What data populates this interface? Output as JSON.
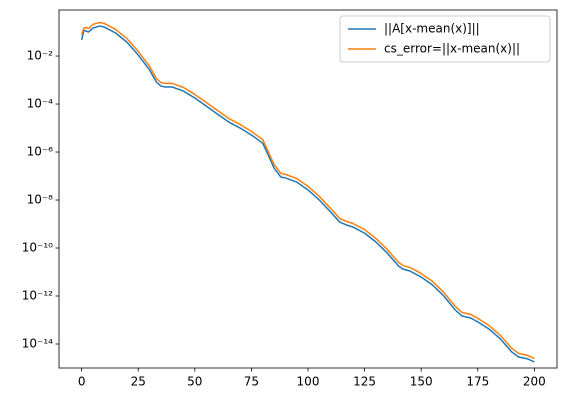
{
  "chart_data": {
    "type": "line",
    "yscale": "log",
    "x": [
      0,
      1,
      2,
      3,
      5,
      8,
      10,
      15,
      20,
      25,
      30,
      33,
      35,
      37,
      40,
      45,
      50,
      55,
      60,
      65,
      70,
      75,
      80,
      82,
      85,
      88,
      90,
      95,
      100,
      105,
      110,
      114,
      117,
      120,
      125,
      130,
      135,
      140,
      142,
      145,
      150,
      155,
      160,
      165,
      168,
      172,
      175,
      180,
      185,
      190,
      193,
      197,
      200
    ],
    "series": [
      {
        "name": "||A[x-mean(x)]||",
        "color": "#1f77b4",
        "values": [
          0.0468,
          0.12,
          0.11,
          0.1,
          0.148,
          0.178,
          0.162,
          0.0912,
          0.038,
          0.011,
          0.00263,
          0.000832,
          0.000562,
          0.000513,
          0.000513,
          0.000347,
          0.000178,
          8.32e-05,
          3.8e-05,
          1.78e-05,
          1e-05,
          5.13e-06,
          2.34e-06,
          9.12e-07,
          2.14e-07,
          9.12e-08,
          8.32e-08,
          5.62e-08,
          2.63e-08,
          1e-08,
          3.16e-09,
          1.2e-09,
          9.12e-10,
          7.41e-10,
          4.17e-10,
          1.78e-10,
          6.17e-11,
          1.78e-11,
          1.32e-11,
          1.1e-11,
          6.17e-12,
          2.88e-12,
          1e-12,
          2.63e-13,
          1.48e-13,
          1.2e-13,
          8.32e-14,
          4.17e-14,
          1.62e-14,
          4.68e-15,
          2.88e-15,
          2.4e-15,
          1.78e-15
        ]
      },
      {
        "name": "cs_error=||x-mean(x)||",
        "color": "#ff7f0e",
        "values": [
          0.076,
          0.148,
          0.155,
          0.141,
          0.209,
          0.251,
          0.228,
          0.129,
          0.0536,
          0.0155,
          0.00371,
          0.00117,
          0.000792,
          0.000723,
          0.000723,
          0.000489,
          0.000251,
          0.000117,
          5.36e-05,
          2.51e-05,
          1.41e-05,
          7.23e-06,
          3.3e-06,
          1.29e-06,
          3.02e-07,
          1.29e-07,
          1.17e-07,
          7.92e-08,
          3.71e-08,
          1.41e-08,
          4.46e-09,
          1.69e-09,
          1.29e-09,
          1.04e-09,
          5.88e-10,
          2.51e-10,
          8.7e-11,
          2.51e-11,
          1.86e-11,
          1.55e-11,
          8.7e-12,
          4.06e-12,
          1.41e-12,
          3.71e-13,
          2.09e-13,
          1.69e-13,
          1.17e-13,
          5.88e-14,
          2.28e-14,
          6.6e-15,
          4.06e-15,
          3.38e-15,
          2.51e-15
        ]
      }
    ],
    "xlim": [
      -10,
      210
    ],
    "xticks": [
      0,
      25,
      50,
      75,
      100,
      125,
      150,
      175,
      200
    ],
    "ylim": [
      1e-15,
      0.83
    ],
    "yticks": [
      {
        "value": 1e-14,
        "label": "10⁻¹⁴"
      },
      {
        "value": 1e-12,
        "label": "10⁻¹²"
      },
      {
        "value": 1e-10,
        "label": "10⁻¹⁰"
      },
      {
        "value": 1e-08,
        "label": "10⁻⁸"
      },
      {
        "value": 1e-06,
        "label": "10⁻⁶"
      },
      {
        "value": 0.0001,
        "label": "10⁻⁴"
      },
      {
        "value": 0.01,
        "label": "10⁻²"
      }
    ],
    "legend": "upper right"
  }
}
